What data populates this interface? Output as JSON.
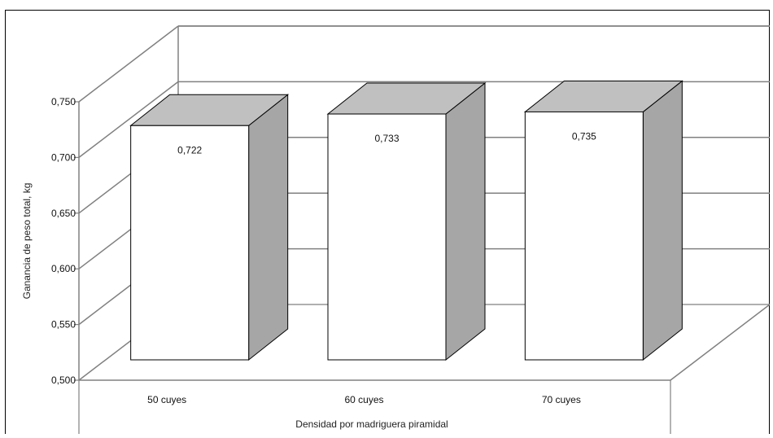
{
  "chart_data": {
    "type": "bar",
    "subtype": "3d-column",
    "categories": [
      "50 cuyes",
      "60 cuyes",
      "70 cuyes"
    ],
    "values": [
      0.722,
      0.733,
      0.735
    ],
    "data_labels": [
      "0,722",
      "0,733",
      "0,735"
    ],
    "xlabel": "Densidad por madriguera piramidal",
    "ylabel": "Ganancia de peso total, kg",
    "ylim": [
      0.5,
      0.75
    ],
    "yticks": [
      0.5,
      0.55,
      0.6,
      0.65,
      0.7,
      0.75
    ],
    "ytick_labels": [
      "0,500",
      "0,550",
      "0,600",
      "0,650",
      "0,700",
      "0,750"
    ],
    "grid": true,
    "legend": "none",
    "colors": {
      "bar_front": "#ffffff",
      "bar_top": "#c0c0c0",
      "bar_side": "#a6a6a6",
      "grid": "#808080",
      "axis": "#808080"
    }
  }
}
